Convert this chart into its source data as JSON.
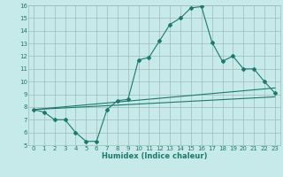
{
  "xlabel": "Humidex (Indice chaleur)",
  "ylabel": "",
  "xlim": [
    -0.5,
    23.5
  ],
  "ylim": [
    5,
    16
  ],
  "yticks": [
    5,
    6,
    7,
    8,
    9,
    10,
    11,
    12,
    13,
    14,
    15,
    16
  ],
  "xticks": [
    0,
    1,
    2,
    3,
    4,
    5,
    6,
    7,
    8,
    9,
    10,
    11,
    12,
    13,
    14,
    15,
    16,
    17,
    18,
    19,
    20,
    21,
    22,
    23
  ],
  "bg_color": "#c6eaea",
  "line_color": "#1a7a6e",
  "grid_color": "#a0b8b8",
  "line1_x": [
    0,
    1,
    2,
    3,
    4,
    5,
    6,
    7,
    8,
    9,
    10,
    11,
    12,
    13,
    14,
    15,
    16,
    17,
    18,
    19,
    20,
    21,
    22,
    23
  ],
  "line1_y": [
    7.8,
    7.6,
    7.0,
    7.0,
    6.0,
    5.3,
    5.3,
    7.8,
    8.5,
    8.6,
    11.7,
    11.9,
    13.2,
    14.5,
    15.0,
    15.8,
    15.9,
    13.1,
    11.6,
    12.0,
    11.0,
    11.0,
    10.0,
    9.1
  ],
  "line2_x": [
    0,
    23
  ],
  "line2_y": [
    7.8,
    8.8
  ],
  "line3_x": [
    0,
    23
  ],
  "line3_y": [
    7.8,
    9.5
  ]
}
